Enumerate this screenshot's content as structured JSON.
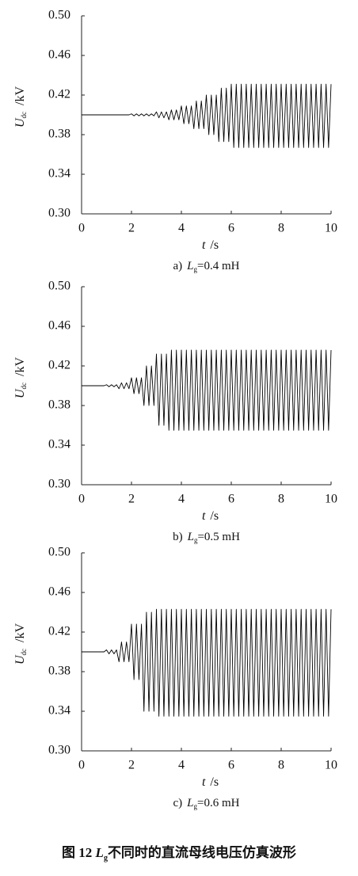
{
  "chart_data": [
    {
      "type": "line",
      "color": "#000000",
      "caption_prefix": "a)",
      "caption_var": "L",
      "caption_sub": "g",
      "caption_rest": "=0.4 mH",
      "xlabel_var": "t",
      "xlabel_unit": "/s",
      "ylabel_var": "U",
      "ylabel_sub": "dc",
      "ylabel_unit": "/kV",
      "xlim": [
        0,
        10
      ],
      "ylim": [
        0.3,
        0.5
      ],
      "xticks": [
        0,
        2,
        4,
        6,
        8,
        10
      ],
      "yticks": [
        {
          "value": 0.3,
          "label": "0.30"
        },
        0.34,
        0.38,
        0.42,
        0.46,
        {
          "value": 0.5,
          "label": "0.50"
        }
      ],
      "x": [
        0,
        0.1,
        0.2,
        0.3,
        0.4,
        0.5,
        0.6,
        0.7,
        0.8,
        0.9,
        1,
        1.1,
        1.2,
        1.3,
        1.4,
        1.5,
        1.6,
        1.7,
        1.8,
        1.9,
        2,
        2.1,
        2.2,
        2.3,
        2.4,
        2.5,
        2.6,
        2.7,
        2.8,
        2.9,
        3,
        3.1,
        3.2,
        3.3,
        3.4,
        3.5,
        3.6,
        3.7,
        3.8,
        3.9,
        4,
        4.1,
        4.2,
        4.3,
        4.4,
        4.5,
        4.6,
        4.7,
        4.8,
        4.9,
        5,
        5.1,
        5.2,
        5.3,
        5.4,
        5.5,
        5.6,
        5.7,
        5.8,
        5.9,
        6,
        6.1,
        6.2,
        6.3,
        6.4,
        6.5,
        6.6,
        6.7,
        6.8,
        6.9,
        7,
        7.1,
        7.2,
        7.3,
        7.4,
        7.5,
        7.6,
        7.7,
        7.8,
        7.9,
        8,
        8.1,
        8.2,
        8.3,
        8.4,
        8.5,
        8.6,
        8.7,
        8.8,
        8.9,
        9,
        9.1,
        9.2,
        9.3,
        9.4,
        9.5,
        9.6,
        9.7,
        9.8,
        9.9,
        10
      ],
      "values": [
        0.4,
        0.4,
        0.4,
        0.4,
        0.4,
        0.4,
        0.4,
        0.4,
        0.4,
        0.4,
        0.4,
        0.4,
        0.4,
        0.4,
        0.4,
        0.4,
        0.4,
        0.4,
        0.4,
        0.4,
        0.401,
        0.399,
        0.401,
        0.399,
        0.401,
        0.399,
        0.401,
        0.399,
        0.401,
        0.399,
        0.403,
        0.397,
        0.403,
        0.397,
        0.403,
        0.395,
        0.405,
        0.395,
        0.405,
        0.395,
        0.409,
        0.391,
        0.409,
        0.391,
        0.409,
        0.386,
        0.414,
        0.386,
        0.414,
        0.386,
        0.42,
        0.38,
        0.42,
        0.38,
        0.42,
        0.373,
        0.427,
        0.373,
        0.427,
        0.373,
        0.431,
        0.367,
        0.431,
        0.367,
        0.431,
        0.367,
        0.431,
        0.367,
        0.431,
        0.367,
        0.431,
        0.367,
        0.431,
        0.367,
        0.431,
        0.367,
        0.431,
        0.367,
        0.431,
        0.367,
        0.431,
        0.367,
        0.431,
        0.367,
        0.431,
        0.367,
        0.431,
        0.367,
        0.431,
        0.367,
        0.431,
        0.367,
        0.431,
        0.367,
        0.431,
        0.367,
        0.431,
        0.367,
        0.431,
        0.367,
        0.431
      ]
    },
    {
      "type": "line",
      "color": "#000000",
      "caption_prefix": "b)",
      "caption_var": "L",
      "caption_sub": "g",
      "caption_rest": "=0.5 mH",
      "xlabel_var": "t",
      "xlabel_unit": "/s",
      "ylabel_var": "U",
      "ylabel_sub": "dc",
      "ylabel_unit": "/kV",
      "xlim": [
        0,
        10
      ],
      "ylim": [
        0.3,
        0.5
      ],
      "xticks": [
        0,
        2,
        4,
        6,
        8,
        10
      ],
      "yticks": [
        {
          "value": 0.3,
          "label": "0.30"
        },
        0.34,
        0.38,
        0.42,
        0.46,
        {
          "value": 0.5,
          "label": "0.50"
        }
      ],
      "x": [
        0,
        0.1,
        0.2,
        0.3,
        0.4,
        0.5,
        0.6,
        0.7,
        0.8,
        0.9,
        1,
        1.1,
        1.2,
        1.3,
        1.4,
        1.5,
        1.6,
        1.7,
        1.8,
        1.9,
        2,
        2.1,
        2.2,
        2.3,
        2.4,
        2.5,
        2.6,
        2.7,
        2.8,
        2.9,
        3,
        3.1,
        3.2,
        3.3,
        3.4,
        3.5,
        3.6,
        3.7,
        3.8,
        3.9,
        4,
        4.1,
        4.2,
        4.3,
        4.4,
        4.5,
        4.6,
        4.7,
        4.8,
        4.9,
        5,
        5.1,
        5.2,
        5.3,
        5.4,
        5.5,
        5.6,
        5.7,
        5.8,
        5.9,
        6,
        6.1,
        6.2,
        6.3,
        6.4,
        6.5,
        6.6,
        6.7,
        6.8,
        6.9,
        7,
        7.1,
        7.2,
        7.3,
        7.4,
        7.5,
        7.6,
        7.7,
        7.8,
        7.9,
        8,
        8.1,
        8.2,
        8.3,
        8.4,
        8.5,
        8.6,
        8.7,
        8.8,
        8.9,
        9,
        9.1,
        9.2,
        9.3,
        9.4,
        9.5,
        9.6,
        9.7,
        9.8,
        9.9,
        10
      ],
      "values": [
        0.4,
        0.4,
        0.4,
        0.4,
        0.4,
        0.4,
        0.4,
        0.4,
        0.4,
        0.4,
        0.401,
        0.399,
        0.401,
        0.399,
        0.401,
        0.397,
        0.403,
        0.397,
        0.403,
        0.397,
        0.408,
        0.392,
        0.408,
        0.392,
        0.408,
        0.38,
        0.42,
        0.38,
        0.42,
        0.38,
        0.432,
        0.36,
        0.432,
        0.36,
        0.432,
        0.355,
        0.436,
        0.355,
        0.436,
        0.355,
        0.436,
        0.355,
        0.436,
        0.355,
        0.436,
        0.355,
        0.436,
        0.355,
        0.436,
        0.355,
        0.436,
        0.355,
        0.436,
        0.355,
        0.436,
        0.355,
        0.436,
        0.355,
        0.436,
        0.355,
        0.436,
        0.355,
        0.436,
        0.355,
        0.436,
        0.355,
        0.436,
        0.355,
        0.436,
        0.355,
        0.436,
        0.355,
        0.436,
        0.355,
        0.436,
        0.355,
        0.436,
        0.355,
        0.436,
        0.355,
        0.436,
        0.355,
        0.436,
        0.355,
        0.436,
        0.355,
        0.436,
        0.355,
        0.436,
        0.355,
        0.436,
        0.355,
        0.436,
        0.355,
        0.436,
        0.355,
        0.436,
        0.355,
        0.436,
        0.355,
        0.436
      ]
    },
    {
      "type": "line",
      "color": "#000000",
      "caption_prefix": "c)",
      "caption_var": "L",
      "caption_sub": "g",
      "caption_rest": "=0.6 mH",
      "xlabel_var": "t",
      "xlabel_unit": "/s",
      "ylabel_var": "U",
      "ylabel_sub": "dc",
      "ylabel_unit": "/kV",
      "xlim": [
        0,
        10
      ],
      "ylim": [
        0.3,
        0.5
      ],
      "xticks": [
        0,
        2,
        4,
        6,
        8,
        10
      ],
      "yticks": [
        {
          "value": 0.3,
          "label": "0.30"
        },
        0.34,
        0.38,
        0.42,
        0.46,
        {
          "value": 0.5,
          "label": "0.50"
        }
      ],
      "x": [
        0,
        0.1,
        0.2,
        0.3,
        0.4,
        0.5,
        0.6,
        0.7,
        0.8,
        0.9,
        1,
        1.1,
        1.2,
        1.3,
        1.4,
        1.5,
        1.6,
        1.7,
        1.8,
        1.9,
        2,
        2.1,
        2.2,
        2.3,
        2.4,
        2.5,
        2.6,
        2.7,
        2.8,
        2.9,
        3,
        3.1,
        3.2,
        3.3,
        3.4,
        3.5,
        3.6,
        3.7,
        3.8,
        3.9,
        4,
        4.1,
        4.2,
        4.3,
        4.4,
        4.5,
        4.6,
        4.7,
        4.8,
        4.9,
        5,
        5.1,
        5.2,
        5.3,
        5.4,
        5.5,
        5.6,
        5.7,
        5.8,
        5.9,
        6,
        6.1,
        6.2,
        6.3,
        6.4,
        6.5,
        6.6,
        6.7,
        6.8,
        6.9,
        7,
        7.1,
        7.2,
        7.3,
        7.4,
        7.5,
        7.6,
        7.7,
        7.8,
        7.9,
        8,
        8.1,
        8.2,
        8.3,
        8.4,
        8.5,
        8.6,
        8.7,
        8.8,
        8.9,
        9,
        9.1,
        9.2,
        9.3,
        9.4,
        9.5,
        9.6,
        9.7,
        9.8,
        9.9,
        10
      ],
      "values": [
        0.4,
        0.4,
        0.4,
        0.4,
        0.4,
        0.4,
        0.4,
        0.4,
        0.4,
        0.4,
        0.402,
        0.398,
        0.402,
        0.398,
        0.402,
        0.39,
        0.41,
        0.39,
        0.41,
        0.39,
        0.428,
        0.372,
        0.428,
        0.372,
        0.428,
        0.34,
        0.44,
        0.34,
        0.44,
        0.34,
        0.443,
        0.335,
        0.443,
        0.335,
        0.443,
        0.335,
        0.443,
        0.335,
        0.443,
        0.335,
        0.443,
        0.335,
        0.443,
        0.335,
        0.443,
        0.335,
        0.443,
        0.335,
        0.443,
        0.335,
        0.443,
        0.335,
        0.443,
        0.335,
        0.443,
        0.335,
        0.443,
        0.335,
        0.443,
        0.335,
        0.443,
        0.335,
        0.443,
        0.335,
        0.443,
        0.335,
        0.443,
        0.335,
        0.443,
        0.335,
        0.443,
        0.335,
        0.443,
        0.335,
        0.443,
        0.335,
        0.443,
        0.335,
        0.443,
        0.335,
        0.443,
        0.335,
        0.443,
        0.335,
        0.443,
        0.335,
        0.443,
        0.335,
        0.443,
        0.335,
        0.443,
        0.335,
        0.443,
        0.335,
        0.443,
        0.335,
        0.443,
        0.335,
        0.443,
        0.335,
        0.443
      ]
    }
  ],
  "figure_caption": {
    "number": "图 12",
    "var": "L",
    "sub": "g",
    "text": "不同时的直流母线电压仿真波形"
  }
}
